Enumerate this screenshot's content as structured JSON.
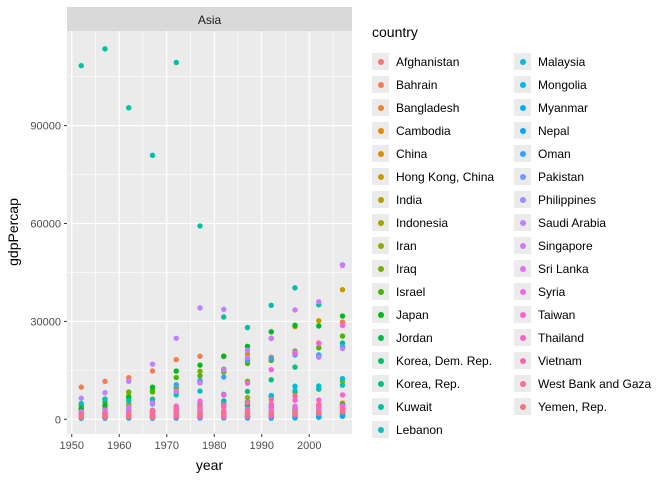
{
  "chart_data": {
    "type": "scatter",
    "facet_label": "Asia",
    "xlabel": "year",
    "ylabel": "gdpPercap",
    "xlim": [
      1949,
      2009
    ],
    "ylim": [
      -4500,
      119000
    ],
    "x_ticks": [
      1950,
      1960,
      1970,
      1980,
      1990,
      2000
    ],
    "y_ticks": [
      0,
      30000,
      60000,
      90000
    ],
    "y_tick_labels": [
      "0",
      "30000",
      "60000",
      "90000"
    ],
    "grid": true,
    "legend_position": "right",
    "legend_title": "country",
    "years": [
      1952,
      1957,
      1962,
      1967,
      1972,
      1977,
      1982,
      1987,
      1992,
      1997,
      2002,
      2007
    ],
    "series": [
      {
        "name": "Afghanistan",
        "color": "#F8766D",
        "values": [
          779,
          821,
          853,
          836,
          740,
          786,
          978,
          852,
          649,
          635,
          727,
          975
        ]
      },
      {
        "name": "Bahrain",
        "color": "#F27D52",
        "values": [
          9867,
          11636,
          12753,
          14805,
          18269,
          19340,
          19211,
          18524,
          19036,
          20292,
          23404,
          29796
        ]
      },
      {
        "name": "Bangladesh",
        "color": "#EA8331",
        "values": [
          684,
          662,
          686,
          721,
          630,
          660,
          677,
          752,
          838,
          973,
          1136,
          1391
        ]
      },
      {
        "name": "Cambodia",
        "color": "#E08B00",
        "values": [
          368,
          434,
          497,
          523,
          422,
          525,
          625,
          684,
          682,
          734,
          896,
          1713
        ]
      },
      {
        "name": "China",
        "color": "#D49200",
        "values": [
          400,
          575,
          488,
          613,
          677,
          741,
          962,
          1379,
          1656,
          2289,
          3119,
          4959
        ]
      },
      {
        "name": "Hong Kong, China",
        "color": "#C49A00",
        "values": [
          3054,
          3629,
          4693,
          6198,
          8316,
          11186,
          14561,
          20038,
          24758,
          28378,
          30209,
          39725
        ]
      },
      {
        "name": "India",
        "color": "#B3A000",
        "values": [
          547,
          590,
          658,
          700,
          724,
          813,
          856,
          977,
          1164,
          1458,
          1747,
          2452
        ]
      },
      {
        "name": "Indonesia",
        "color": "#A3A500",
        "values": [
          750,
          859,
          849,
          763,
          1111,
          1383,
          1517,
          1748,
          2383,
          3119,
          2874,
          3541
        ]
      },
      {
        "name": "Iran",
        "color": "#8EAB00",
        "values": [
          3035,
          3291,
          4187,
          5906,
          9613,
          11889,
          7608,
          6642,
          7235,
          8263,
          9241,
          11606
        ]
      },
      {
        "name": "Iraq",
        "color": "#72B000",
        "values": [
          4130,
          6229,
          8342,
          8931,
          9576,
          14688,
          14517,
          11644,
          3746,
          3076,
          4391,
          4471
        ]
      },
      {
        "name": "Israel",
        "color": "#4CB400",
        "values": [
          4087,
          5386,
          7106,
          8394,
          12787,
          13307,
          15367,
          17122,
          18051,
          20897,
          21906,
          25523
        ]
      },
      {
        "name": "Japan",
        "color": "#00B81F",
        "values": [
          3217,
          4318,
          6577,
          9848,
          14779,
          16610,
          19384,
          22376,
          26825,
          28817,
          28605,
          31656
        ]
      },
      {
        "name": "Jordan",
        "color": "#00BB45",
        "values": [
          1547,
          1887,
          2349,
          2742,
          2110,
          2853,
          4161,
          4449,
          3431,
          3645,
          3845,
          4519
        ]
      },
      {
        "name": "Korea, Dem. Rep.",
        "color": "#00BE67",
        "values": [
          1088,
          1572,
          1622,
          2144,
          3702,
          4106,
          4107,
          4106,
          3726,
          1691,
          1647,
          1593
        ]
      },
      {
        "name": "Korea, Rep.",
        "color": "#00C086",
        "values": [
          1031,
          1488,
          1536,
          2029,
          3031,
          4657,
          5623,
          8533,
          12104,
          15994,
          19234,
          23348
        ]
      },
      {
        "name": "Kuwait",
        "color": "#00C0A3",
        "values": [
          108382,
          113523,
          95458,
          80895,
          109348,
          59265,
          31354,
          28118,
          34933,
          40301,
          35110,
          47307
        ]
      },
      {
        "name": "Lebanon",
        "color": "#00BFBC",
        "values": [
          4835,
          6090,
          5716,
          6006,
          7486,
          8660,
          7641,
          5377,
          6891,
          8755,
          9314,
          10461
        ]
      },
      {
        "name": "Malaysia",
        "color": "#00BCD6",
        "values": [
          1831,
          1810,
          2037,
          2278,
          2849,
          3828,
          4920,
          5249,
          7278,
          10133,
          10207,
          12452
        ]
      },
      {
        "name": "Mongolia",
        "color": "#00B7E9",
        "values": [
          786,
          912,
          1056,
          1226,
          1421,
          1648,
          1843,
          2091,
          1776,
          1766,
          2140,
          3096
        ]
      },
      {
        "name": "Myanmar",
        "color": "#00B0F6",
        "values": [
          331,
          350,
          388,
          349,
          357,
          371,
          424,
          385,
          347,
          415,
          611,
          944
        ]
      },
      {
        "name": "Nepal",
        "color": "#00A9FF",
        "values": [
          546,
          598,
          652,
          676,
          674,
          695,
          718,
          775,
          897,
          1011,
          1057,
          1091
        ]
      },
      {
        "name": "Oman",
        "color": "#35A2FF",
        "values": [
          1828,
          2243,
          2925,
          4721,
          10618,
          11848,
          12955,
          18116,
          18617,
          19702,
          19775,
          22316
        ]
      },
      {
        "name": "Pakistan",
        "color": "#7499FF",
        "values": [
          684,
          747,
          804,
          942,
          1050,
          1176,
          1443,
          1705,
          1972,
          2049,
          2093,
          2606
        ]
      },
      {
        "name": "Philippines",
        "color": "#9F8CFF",
        "values": [
          1273,
          1548,
          1650,
          1814,
          1989,
          2373,
          2603,
          2190,
          2279,
          2536,
          2651,
          3190
        ]
      },
      {
        "name": "Saudi Arabia",
        "color": "#BB83FF",
        "values": [
          6460,
          8157,
          11627,
          16903,
          24837,
          34168,
          33693,
          21199,
          24841,
          20586,
          19014,
          21655
        ]
      },
      {
        "name": "Singapore",
        "color": "#D078FF",
        "values": [
          2315,
          2843,
          3675,
          4977,
          8597,
          11210,
          15169,
          18862,
          24769,
          33519,
          36023,
          47143
        ]
      },
      {
        "name": "Sri Lanka",
        "color": "#E070F9",
        "values": [
          1084,
          1073,
          1074,
          1136,
          1213,
          1348,
          1648,
          1877,
          2154,
          2665,
          3015,
          3970
        ]
      },
      {
        "name": "Syria",
        "color": "#EF67EB",
        "values": [
          1644,
          2118,
          2194,
          1882,
          2571,
          3196,
          3761,
          3116,
          3341,
          4014,
          4090,
          4185
        ]
      },
      {
        "name": "Taiwan",
        "color": "#FA62DB",
        "values": [
          1207,
          1508,
          1822,
          2644,
          4063,
          5597,
          7426,
          11055,
          15216,
          20206,
          23235,
          28718
        ]
      },
      {
        "name": "Thailand",
        "color": "#FF62C7",
        "values": [
          758,
          793,
          1002,
          1296,
          1524,
          1962,
          2393,
          2982,
          4617,
          5853,
          5913,
          7458
        ]
      },
      {
        "name": "Vietnam",
        "color": "#FF63B1",
        "values": [
          605,
          676,
          772,
          637,
          700,
          714,
          707,
          821,
          989,
          1385,
          1764,
          2442
        ]
      },
      {
        "name": "West Bank and Gaza",
        "color": "#FF6A98",
        "values": [
          1516,
          1827,
          2199,
          2650,
          3133,
          4070,
          4336,
          5108,
          6018,
          7111,
          4516,
          3026
        ]
      },
      {
        "name": "Yemen, Rep.",
        "color": "#FC717F",
        "values": [
          782,
          805,
          826,
          863,
          1266,
          1830,
          1978,
          1972,
          1879,
          2118,
          2235,
          2281
        ]
      }
    ]
  }
}
